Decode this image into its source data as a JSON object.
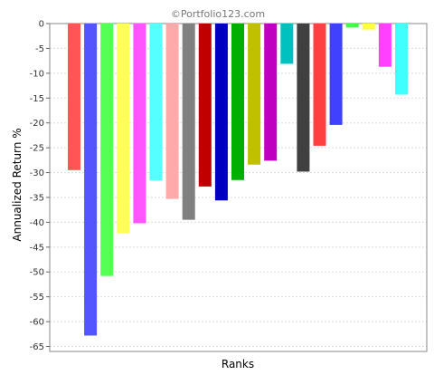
{
  "watermark": "©Portfolio123.com",
  "chart_data": {
    "type": "bar",
    "title": "",
    "xlabel": "Ranks",
    "ylabel": "Annualized Return %",
    "ylim": [
      -66,
      0
    ],
    "y_ticks": [
      0,
      -5,
      -10,
      -15,
      -20,
      -25,
      -30,
      -35,
      -40,
      -45,
      -50,
      -55,
      -60,
      -65
    ],
    "grid": true,
    "legend": "none",
    "values": [
      -29.5,
      -62.8,
      -50.8,
      -42.2,
      -40.2,
      -31.6,
      -35.3,
      -39.5,
      -32.8,
      -35.6,
      -31.5,
      -28.4,
      -27.6,
      -8.1,
      -29.8,
      -24.6,
      -20.4,
      -0.8,
      -1.2,
      -8.7,
      -14.3
    ],
    "colors": [
      "#ff5555",
      "#5555ff",
      "#55ff55",
      "#ffff55",
      "#ff55ff",
      "#55ffff",
      "#ffaaaa",
      "#808080",
      "#c00000",
      "#0000c0",
      "#00b000",
      "#c0c000",
      "#c000c0",
      "#00c0c0",
      "#404040",
      "#ff4040",
      "#4040ff",
      "#40ff40",
      "#ffff40",
      "#ff40ff",
      "#40ffff"
    ]
  }
}
